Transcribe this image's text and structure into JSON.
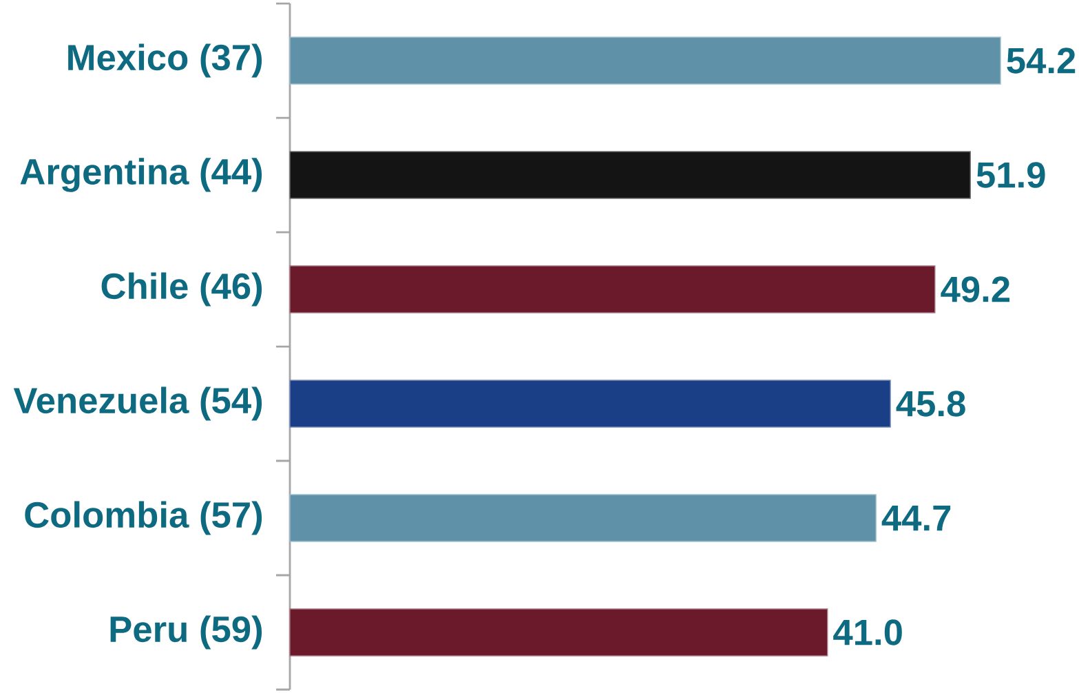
{
  "chart_data": {
    "type": "bar",
    "orientation": "horizontal",
    "categories": [
      "Mexico (37)",
      "Argentina (44)",
      "Chile (46)",
      "Venezuela (54)",
      "Colombia (57)",
      "Peru (59)"
    ],
    "values": [
      54.2,
      51.9,
      49.2,
      45.8,
      44.7,
      41.0
    ],
    "value_labels": [
      "54.2",
      "51.9",
      "49.2",
      "45.8",
      "44.7",
      "41.0"
    ],
    "colors": [
      "#5f92a8",
      "#141414",
      "#6a1a2b",
      "#1b3f86",
      "#5f92a8",
      "#6a1a2b"
    ],
    "tick_labels": "y"
  }
}
